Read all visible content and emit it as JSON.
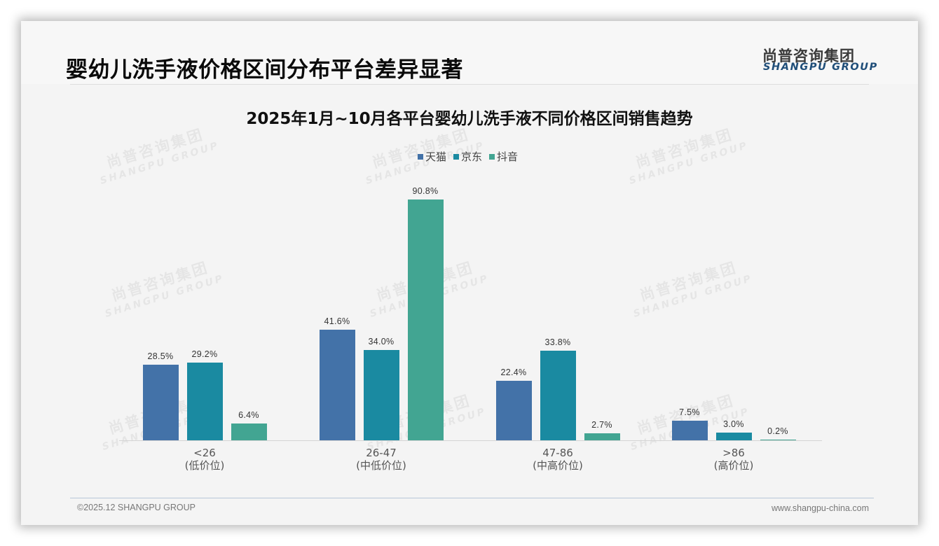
{
  "header": {
    "title": "婴幼儿洗手液价格区间分布平台差异显著",
    "logo_cn": "尚普咨询集团",
    "logo_en": "SHANGPU GROUP"
  },
  "watermark": {
    "cn": "尚普咨询集团",
    "en": "SHANGPU GROUP"
  },
  "footer": {
    "copyright": "©2025.12 SHANGPU GROUP",
    "website": "www.shangpu-china.com"
  },
  "colors": {
    "tmall": "#4372a8",
    "jd": "#1a8aa1",
    "douyin": "#42a592"
  },
  "chart_data": {
    "type": "bar",
    "title": "2025年1月~10月各平台婴幼儿洗手液不同价格区间销售趋势",
    "categories": [
      "<26\n(低价位)",
      "26-47\n(中低价位)",
      "47-86\n(中高价位)",
      ">86\n(高价位)"
    ],
    "category_ranges": [
      "<26",
      "26-47",
      "47-86",
      ">86"
    ],
    "category_names": [
      "(低价位)",
      "(中低价位)",
      "(中高价位)",
      "(高价位)"
    ],
    "series": [
      {
        "name": "天猫",
        "values": [
          28.5,
          41.6,
          22.4,
          7.5
        ],
        "labels": [
          "28.5%",
          "41.6%",
          "22.4%",
          "7.5%"
        ],
        "color": "#4372a8"
      },
      {
        "name": "京东",
        "values": [
          29.2,
          34.0,
          33.8,
          3.0
        ],
        "labels": [
          "29.2%",
          "34.0%",
          "33.8%",
          "3.0%"
        ],
        "color": "#1a8aa1"
      },
      {
        "name": "抖音",
        "values": [
          6.4,
          90.8,
          2.7,
          0.2
        ],
        "labels": [
          "6.4%",
          "90.8%",
          "2.7%",
          "0.2%"
        ],
        "color": "#42a592"
      }
    ],
    "unit": "%",
    "xlabel": "",
    "ylabel": "",
    "ylim": [
      0,
      100
    ],
    "grid": false,
    "y_axis_visible": false,
    "legend_position": "top"
  }
}
